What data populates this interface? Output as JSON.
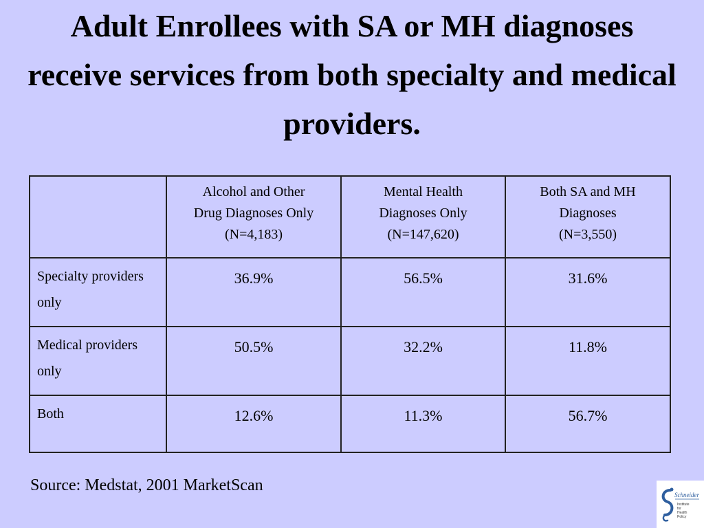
{
  "slide": {
    "title": "Adult Enrollees with SA or MH diagnoses receive services from both specialty and medical providers."
  },
  "table": {
    "corner": "",
    "columns": [
      {
        "lines": [
          "Alcohol and Other",
          "Drug Diagnoses Only",
          "(N=4,183)"
        ]
      },
      {
        "lines": [
          "Mental Health",
          "Diagnoses Only",
          "(N=147,620)"
        ]
      },
      {
        "lines": [
          "Both SA and MH",
          "Diagnoses",
          "(N=3,550)"
        ]
      }
    ],
    "rows": [
      {
        "label": "Specialty providers only",
        "values": [
          "36.9%",
          "56.5%",
          "31.6%"
        ]
      },
      {
        "label": "Medical providers only",
        "values": [
          "50.5%",
          "32.2%",
          "11.8%"
        ]
      },
      {
        "label": "Both",
        "values": [
          "12.6%",
          "11.3%",
          "56.7%"
        ]
      }
    ]
  },
  "footer": {
    "source": "Source: Medstat, 2001 MarketScan"
  },
  "logo": {
    "wordmark": "Schneider",
    "lines": [
      "Institute",
      "for",
      "Health",
      "Policy"
    ],
    "accent_color": "#2f5f9f"
  }
}
